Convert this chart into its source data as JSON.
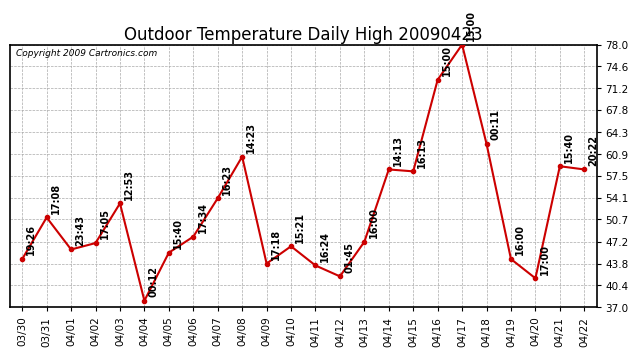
{
  "title": "Outdoor Temperature Daily High 20090423",
  "copyright": "Copyright 2009 Cartronics.com",
  "x_labels": [
    "03/30",
    "03/31",
    "04/01",
    "04/02",
    "04/03",
    "04/04",
    "04/05",
    "04/06",
    "04/07",
    "04/08",
    "04/09",
    "04/10",
    "04/11",
    "04/12",
    "04/13",
    "04/14",
    "04/15",
    "04/16",
    "04/17",
    "04/18",
    "04/19",
    "04/20",
    "04/21",
    "04/22"
  ],
  "y_values": [
    44.5,
    51.0,
    46.0,
    47.0,
    53.2,
    38.0,
    45.5,
    48.0,
    54.0,
    60.5,
    43.8,
    46.5,
    43.5,
    41.8,
    47.2,
    58.5,
    58.2,
    72.5,
    78.0,
    62.5,
    44.5,
    41.5,
    59.0,
    58.5
  ],
  "time_labels": [
    "19:26",
    "17:08",
    "23:43",
    "17:05",
    "12:53",
    "00:12",
    "15:40",
    "17:34",
    "16:23",
    "14:23",
    "17:18",
    "15:21",
    "16:24",
    "01:45",
    "16:00",
    "14:13",
    "16:13",
    "15:00",
    "15:00",
    "00:11",
    "16:00",
    "17:00",
    "15:40",
    "20:22"
  ],
  "y_min": 37.0,
  "y_max": 78.0,
  "y_ticks": [
    37.0,
    40.4,
    43.8,
    47.2,
    50.7,
    54.1,
    57.5,
    60.9,
    64.3,
    67.8,
    71.2,
    74.6,
    78.0
  ],
  "line_color": "#cc0000",
  "marker_color": "#cc0000",
  "bg_color": "#ffffff",
  "grid_color": "#aaaaaa",
  "title_fontsize": 12,
  "label_fontsize": 7,
  "tick_fontsize": 7.5
}
